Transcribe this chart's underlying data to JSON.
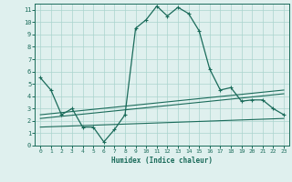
{
  "xlabel": "Humidex (Indice chaleur)",
  "bg_color": "#dff0ee",
  "grid_color": "#aad4ce",
  "line_color": "#1a6b5a",
  "xlim": [
    -0.5,
    23.5
  ],
  "ylim": [
    0,
    11.5
  ],
  "xticks": [
    0,
    1,
    2,
    3,
    4,
    5,
    6,
    7,
    8,
    9,
    10,
    11,
    12,
    13,
    14,
    15,
    16,
    17,
    18,
    19,
    20,
    21,
    22,
    23
  ],
  "yticks": [
    0,
    1,
    2,
    3,
    4,
    5,
    6,
    7,
    8,
    9,
    10,
    11
  ],
  "main_curve_x": [
    0,
    1,
    2,
    3,
    4,
    5,
    6,
    7,
    8,
    9,
    10,
    11,
    12,
    13,
    14,
    15,
    16,
    17,
    18,
    19,
    20,
    21,
    22,
    23
  ],
  "main_curve_y": [
    5.5,
    4.5,
    2.5,
    3.0,
    1.5,
    1.5,
    0.3,
    1.3,
    2.5,
    9.5,
    10.2,
    11.3,
    10.5,
    11.2,
    10.7,
    9.3,
    6.2,
    4.5,
    4.7,
    3.6,
    3.7,
    3.7,
    3.0,
    2.5
  ],
  "line2_x": [
    0,
    23
  ],
  "line2_y": [
    2.5,
    4.5
  ],
  "line3_x": [
    0,
    23
  ],
  "line3_y": [
    2.2,
    4.2
  ],
  "line4_x": [
    0,
    23
  ],
  "line4_y": [
    1.5,
    2.2
  ]
}
